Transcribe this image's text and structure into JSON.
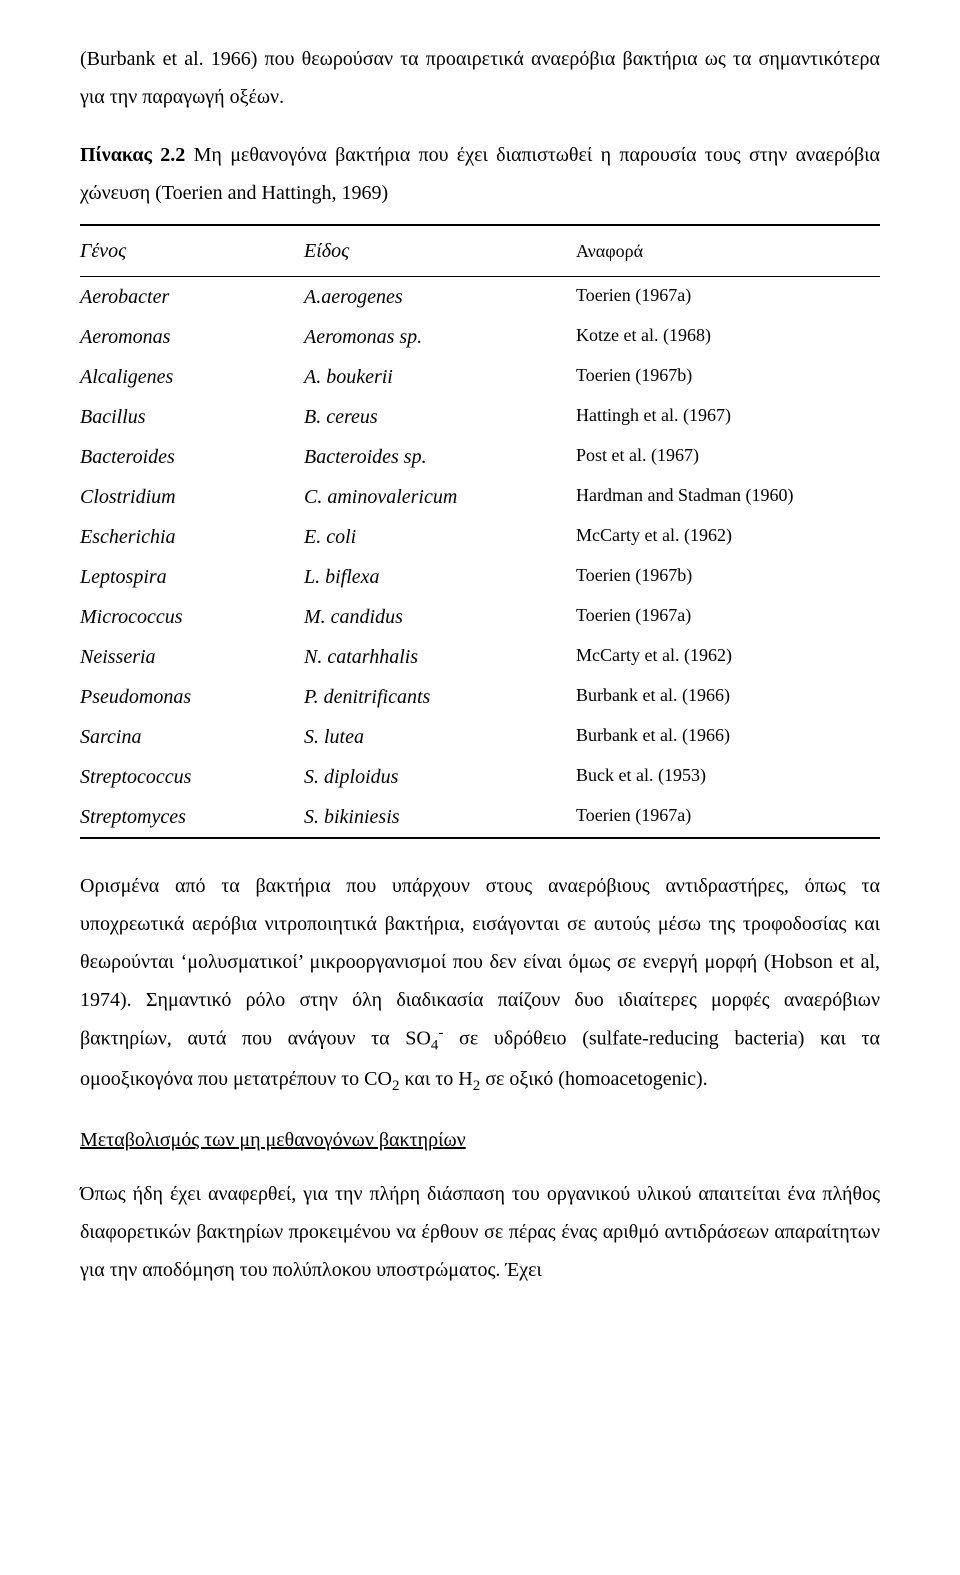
{
  "intro_paragraph": "(Burbank et al. 1966) που θεωρούσαν τα προαιρετικά αναερόβια βακτήρια ως τα σημαντικότερα για την παραγωγή οξέων.",
  "table": {
    "caption_label": "Πίνακας 2.2",
    "caption_text": "Μη μεθανογόνα βακτήρια που έχει διαπιστωθεί η παρουσία τους στην αναερόβια χώνευση (Toerien and Hattingh, 1969)",
    "columns": [
      "Γένος",
      "Είδος",
      "Αναφορά"
    ],
    "rows": [
      {
        "genus": "Aerobacter",
        "species": "A.aerogenes",
        "ref": "Toerien (1967a)"
      },
      {
        "genus": "Aeromonas",
        "species": "Aeromonas sp.",
        "ref": "Kotze et al. (1968)"
      },
      {
        "genus": "Alcaligenes",
        "species": "A. boukerii",
        "ref": "Toerien (1967b)"
      },
      {
        "genus": "Bacillus",
        "species": "B. cereus",
        "ref": "Hattingh et al. (1967)"
      },
      {
        "genus": "Bacteroides",
        "species": "Bacteroides sp.",
        "ref": "Post et al. (1967)"
      },
      {
        "genus": "Clostridium",
        "species": "C. aminovalericum",
        "ref": "Hardman and Stadman (1960)"
      },
      {
        "genus": "Escherichia",
        "species": "E. coli",
        "ref": "McCarty et al. (1962)"
      },
      {
        "genus": "Leptospira",
        "species": "L. biflexa",
        "ref": "Toerien (1967b)"
      },
      {
        "genus": "Micrococcus",
        "species": "M. candidus",
        "ref": "Toerien (1967a)"
      },
      {
        "genus": "Neisseria",
        "species": "N. catarhhalis",
        "ref": "McCarty et al. (1962)"
      },
      {
        "genus": "Pseudomonas",
        "species": "P. denitrificants",
        "ref": "Burbank et al. (1966)"
      },
      {
        "genus": "Sarcina",
        "species": "S. lutea",
        "ref": "Burbank et al. (1966)"
      },
      {
        "genus": "Streptococcus",
        "species": "S. diploidus",
        "ref": "Buck et al. (1953)"
      },
      {
        "genus": "Streptomyces",
        "species": "S. bikiniesis",
        "ref": "Toerien (1967a)"
      }
    ]
  },
  "mid_paragraph_html": "Ορισμένα από τα βακτήρια που υπάρχουν στους αναερόβιους αντιδραστήρες, όπως τα υποχρεωτικά αερόβια νιτροποιητικά βακτήρια, εισάγονται σε αυτούς μέσω της τροφοδοσίας και θεωρούνται ‘μολυσματικοί’ μικροοργανισμοί που δεν είναι όμως σε ενεργή μορφή (Hobson et al, 1974). Σημαντικό ρόλο στην όλη διαδικασία παίζουν δυο ιδιαίτερες μορφές αναερόβιων βακτηρίων, αυτά που ανάγουν τα SO<span class=\"sub\">4</span><span class=\"sup\">-</span> σε υδρόθειο (sulfate-reducing bacteria)  και τα ομοοξικογόνα που μετατρέπουν το CO<span class=\"sub\">2</span> και το H<span class=\"sub\">2</span> σε οξικό (homoacetogenic).",
  "section_heading": "Μεταβολισμός των μη μεθανογόνων βακτηρίων",
  "final_paragraph": "Όπως ήδη έχει αναφερθεί, για την πλήρη διάσπαση του οργανικού υλικού απαιτείται ένα πλήθος διαφορετικών βακτηρίων προκειμένου να έρθουν σε πέρας ένας αριθμό αντιδράσεων απαραίτητων για την αποδόμηση του πολύπλοκου υποστρώματος. Έχει"
}
